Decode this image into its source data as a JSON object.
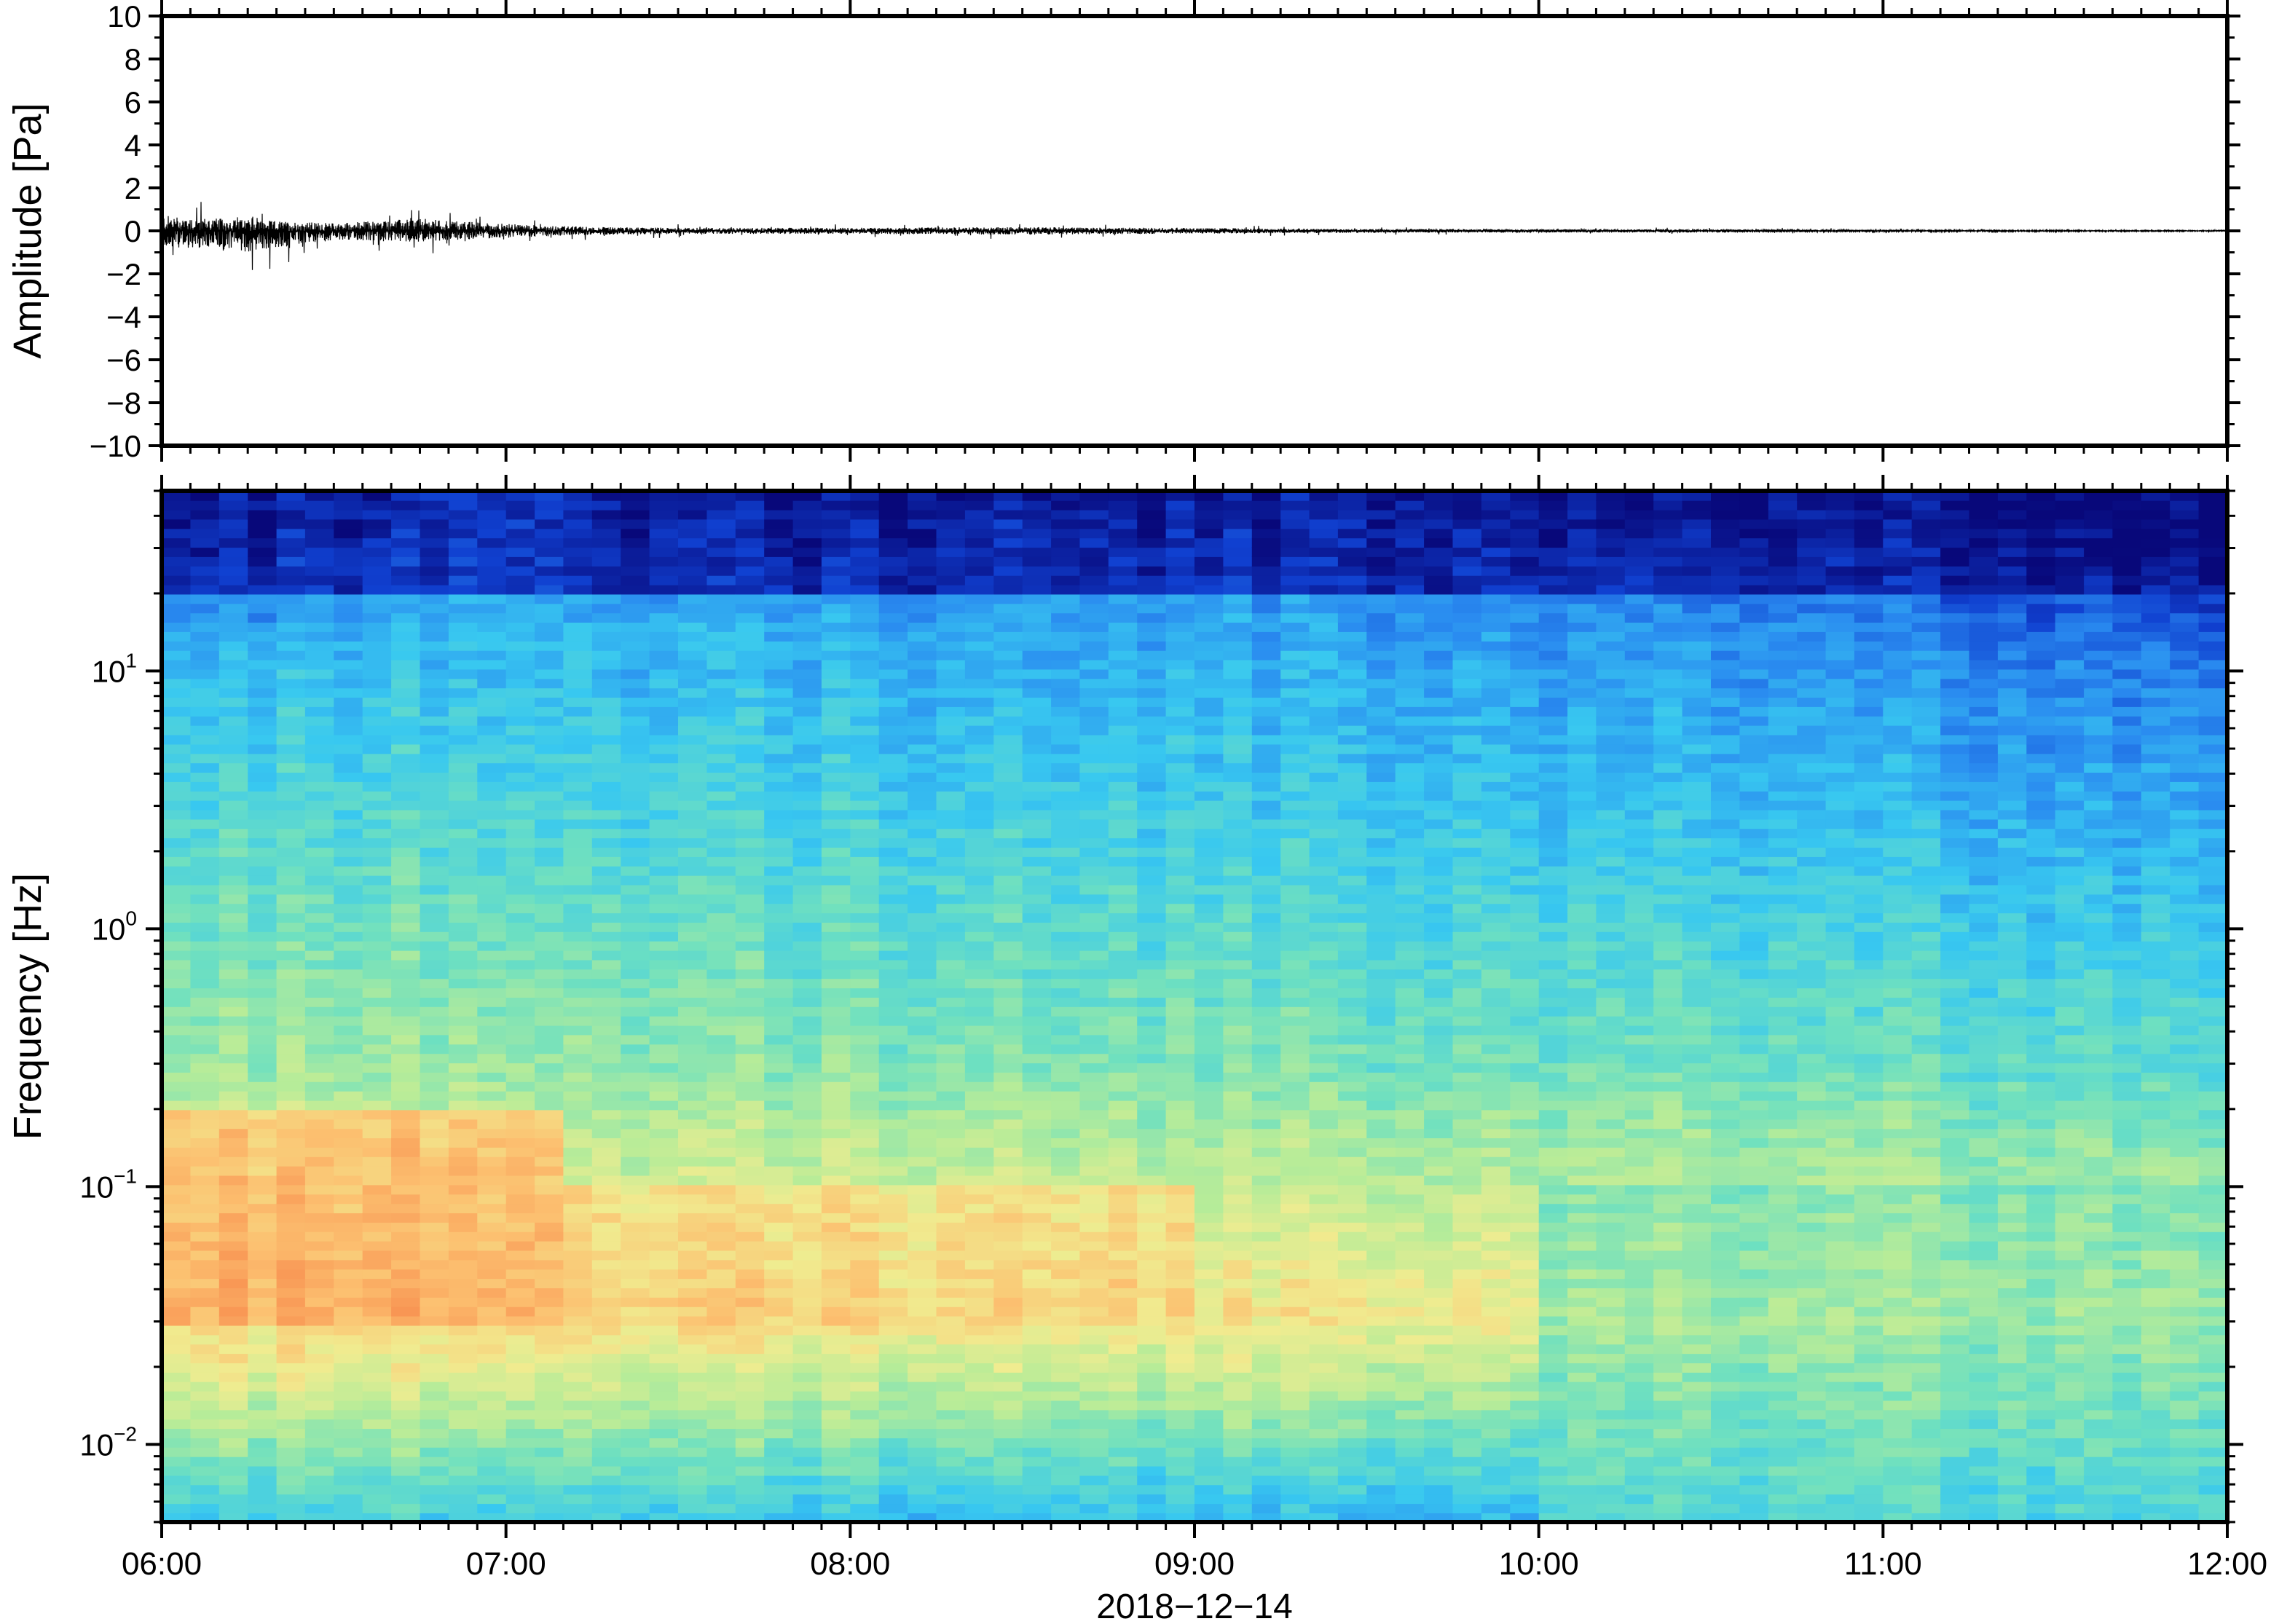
{
  "chart_data": [
    {
      "type": "line",
      "title": "",
      "xlabel": "",
      "ylabel": "Amplitude [Pa]",
      "xlim": [
        "06:00",
        "12:00"
      ],
      "ylim": [
        -10,
        10
      ],
      "y_ticks": [
        10,
        8,
        6,
        4,
        2,
        0,
        -2,
        -4,
        -6,
        -8,
        -10
      ],
      "y_tick_labels": [
        "10",
        "8",
        "6",
        "4",
        "2",
        "0",
        "−2",
        "−4",
        "−6",
        "−8",
        "−10"
      ],
      "grid": false,
      "series": [
        {
          "x": [
            "06:00",
            "06:15",
            "06:30",
            "06:45",
            "07:00",
            "07:15",
            "07:30",
            "08:00",
            "08:30",
            "09:00",
            "09:30",
            "10:00",
            "10:30",
            "11:00",
            "11:30",
            "12:00"
          ],
          "envelope_max": [
            1.0,
            0.7,
            0.5,
            0.8,
            0.45,
            0.25,
            0.2,
            0.2,
            0.25,
            0.18,
            0.12,
            0.1,
            0.1,
            0.07,
            0.05,
            0.04
          ],
          "envelope_min": [
            -1.0,
            -1.4,
            -0.6,
            -0.7,
            -0.45,
            -0.25,
            -0.2,
            -0.2,
            -0.25,
            -0.18,
            -0.12,
            -0.1,
            -0.1,
            -0.07,
            -0.05,
            -0.04
          ],
          "color": "#000000"
        }
      ]
    },
    {
      "type": "heatmap",
      "title": "",
      "xlabel": "2018−12−14",
      "ylabel": "Frequency [Hz]",
      "xlim": [
        "06:00",
        "12:00"
      ],
      "ylim": [
        0.005,
        50
      ],
      "yscale": "log",
      "x_tick_labels": [
        "06:00",
        "07:00",
        "08:00",
        "09:00",
        "10:00",
        "11:00",
        "12:00"
      ],
      "y_ticks": [
        10,
        1,
        0.1,
        0.01
      ],
      "y_tick_labels": [
        {
          "base": "10",
          "exp": "1"
        },
        {
          "base": "10",
          "exp": "0"
        },
        {
          "base": "10",
          "exp": "−1"
        },
        {
          "base": "10",
          "exp": "−2"
        }
      ],
      "colormap": [
        "#08087a",
        "#1040d0",
        "#2a8cf0",
        "#38c8f0",
        "#6ee0c0",
        "#b8ec98",
        "#f0ec90",
        "#fcc070",
        "#f89050",
        "#e85040"
      ],
      "value_scale": "relative power 0 (low) to 1 (high)",
      "features": [
        {
          "time": [
            "06:00",
            "07:08"
          ],
          "freq_hz": [
            0.03,
            0.2
          ],
          "level": 0.85
        },
        {
          "time": [
            "06:45",
            "07:08"
          ],
          "freq_hz": [
            10,
            50
          ],
          "level": 0.3
        },
        {
          "time": [
            "07:10",
            "09:00"
          ],
          "freq_hz": [
            0.03,
            0.1
          ],
          "level": 0.75
        },
        {
          "time": [
            "10:00",
            "12:00"
          ],
          "freq_hz": [
            0.005,
            0.1
          ],
          "level": 0.45
        },
        {
          "time": [
            "06:00",
            "12:00"
          ],
          "freq_hz": [
            20,
            50
          ],
          "level": 0.0
        }
      ]
    }
  ]
}
